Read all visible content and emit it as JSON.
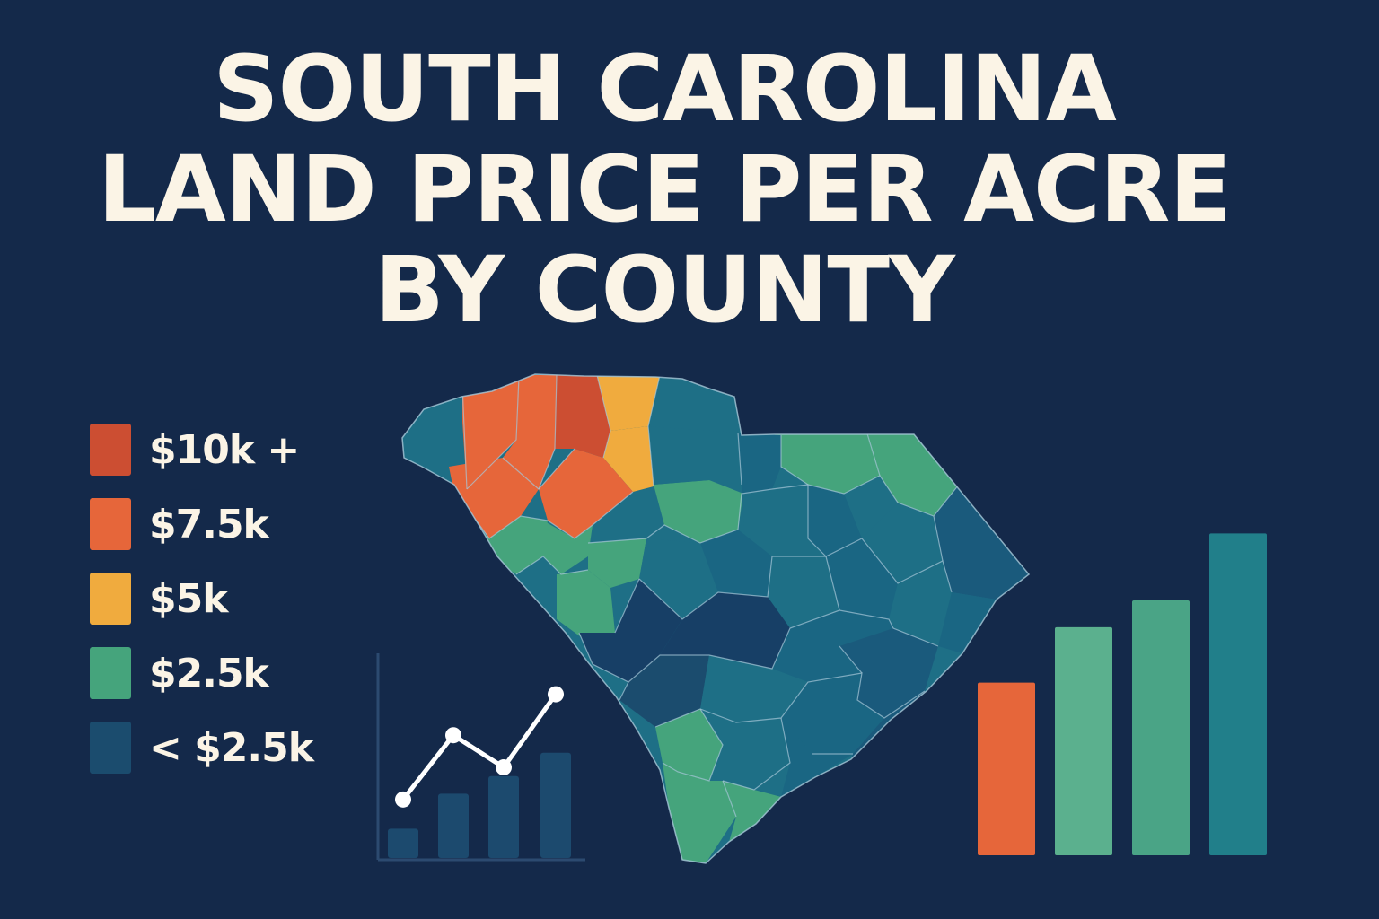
{
  "title_lines": [
    "SOUTH CAROLINA",
    "LAND PRICE PER ACRE",
    "BY COUNTY"
  ],
  "colors": {
    "background": "#14294a",
    "text": "#fbf4e6",
    "price_10k_plus": "#cc4e32",
    "price_7_5k": "#e6663a",
    "price_5k": "#f0ab3e",
    "price_2_5k": "#45a47c",
    "price_under_2_5k": "#1b4c6e",
    "county_teal": "#1e6f86",
    "county_blue": "#1a5a7c",
    "county_dark": "#173f66",
    "border": "#a8c8d8"
  },
  "legend": [
    {
      "label": "$10k +",
      "color": "#cc4e32"
    },
    {
      "label": "$7.5k",
      "color": "#e6663a"
    },
    {
      "label": "$5k",
      "color": "#f0ab3e"
    },
    {
      "label": "$2.5k",
      "color": "#45a47c"
    },
    {
      "label": "< $2.5k",
      "color": "#1b4c6e"
    }
  ],
  "map_icon": "south-carolina-county-map",
  "mini_chart": {
    "line_values": [
      2,
      4.2,
      3.1,
      5.6
    ],
    "bar_values": [
      1,
      2.2,
      2.8,
      3.6
    ],
    "y_max": 7,
    "bar_color": "#1c4a6e",
    "line_color": "#ffffff"
  },
  "big_bar_chart": {
    "values": [
      4.05,
      5.35,
      5.98,
      7.55
    ],
    "y_max": 8,
    "colors": [
      "#e6663a",
      "#5bb08e",
      "#4aa486",
      "#217f8a"
    ]
  }
}
